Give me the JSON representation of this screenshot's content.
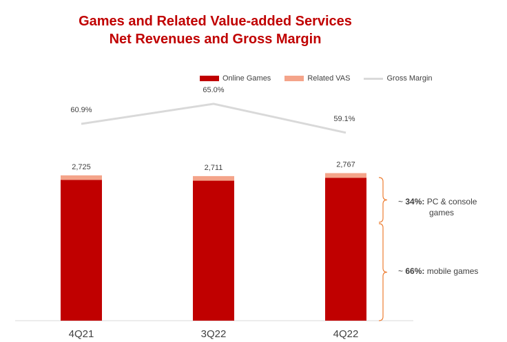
{
  "header": {
    "title_line1": "Games and Related Value-added Services",
    "title_line2": "Net Revenues and Gross Margin"
  },
  "legend": {
    "online_games": "Online Games",
    "related_vas": "Related VAS",
    "gross_margin": "Gross Margin"
  },
  "colors": {
    "online_games": "#c00000",
    "related_vas": "#f4a48a",
    "gross_margin": "#d9d9d9",
    "title": "#c00000",
    "brace": "#ed7d31"
  },
  "annotations": {
    "pc_pct": "34%:",
    "pc_prefix": "~",
    "pc_text": "PC & console",
    "pc_text2": "games",
    "mobile_prefix": "~",
    "mobile_pct": "66%:",
    "mobile_text": "mobile games"
  },
  "chart_data": {
    "type": "bar",
    "categories": [
      "4Q21",
      "3Q22",
      "4Q22"
    ],
    "series": [
      {
        "name": "Online Games",
        "values": [
          2640,
          2625,
          2680
        ]
      },
      {
        "name": "Related VAS",
        "values": [
          85,
          86,
          87
        ]
      }
    ],
    "totals": [
      "2,725",
      "2,711",
      "2,767"
    ],
    "total_values": [
      2725,
      2711,
      2767
    ],
    "gross_margin": {
      "name": "Gross Margin",
      "values": [
        60.9,
        65.0,
        59.1
      ],
      "labels": [
        "60.9%",
        "65.0%",
        "59.1%"
      ]
    }
  }
}
